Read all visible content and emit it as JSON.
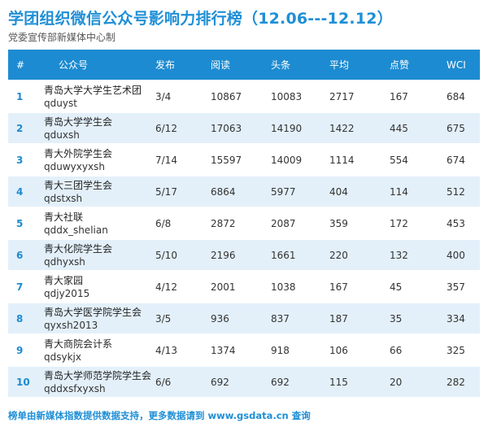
{
  "title": "学团组织微信公众号影响力排行榜（12.06---12.12）",
  "subtitle": "党委宣传部新媒体中心制",
  "header": {
    "rank": "#",
    "name": "公众号",
    "posts": "发布",
    "reads": "阅读",
    "headline": "头条",
    "avg": "平均",
    "likes": "点赞",
    "wci": "WCI"
  },
  "rows": [
    {
      "rank": "1",
      "name": "青岛大学大学生艺术团",
      "id": "qduyst",
      "posts": "3/4",
      "reads": "10867",
      "headline": "10083",
      "avg": "2717",
      "likes": "167",
      "wci": "684"
    },
    {
      "rank": "2",
      "name": "青岛大学学生会",
      "id": "qduxsh",
      "posts": "6/12",
      "reads": "17063",
      "headline": "14190",
      "avg": "1422",
      "likes": "445",
      "wci": "675"
    },
    {
      "rank": "3",
      "name": "青大外院学生会",
      "id": "qduwyxyxsh",
      "posts": "7/14",
      "reads": "15597",
      "headline": "14009",
      "avg": "1114",
      "likes": "554",
      "wci": "674"
    },
    {
      "rank": "4",
      "name": "青大三团学生会",
      "id": "qdstxsh",
      "posts": "5/17",
      "reads": "6864",
      "headline": "5977",
      "avg": "404",
      "likes": "114",
      "wci": "512"
    },
    {
      "rank": "5",
      "name": "青大社联",
      "id": "qddx_shelian",
      "posts": "6/8",
      "reads": "2872",
      "headline": "2087",
      "avg": "359",
      "likes": "172",
      "wci": "453"
    },
    {
      "rank": "6",
      "name": "青大化院学生会",
      "id": "qdhyxsh",
      "posts": "5/10",
      "reads": "2196",
      "headline": "1661",
      "avg": "220",
      "likes": "132",
      "wci": "400"
    },
    {
      "rank": "7",
      "name": "青大家园",
      "id": "qdjy2015",
      "posts": "4/12",
      "reads": "2001",
      "headline": "1038",
      "avg": "167",
      "likes": "45",
      "wci": "357"
    },
    {
      "rank": "8",
      "name": "青岛大学医学院学生会",
      "id": "qyxsh2013",
      "posts": "3/5",
      "reads": "936",
      "headline": "837",
      "avg": "187",
      "likes": "35",
      "wci": "334"
    },
    {
      "rank": "9",
      "name": "青大商院会计系",
      "id": "qdsykjx",
      "posts": "4/13",
      "reads": "1374",
      "headline": "918",
      "avg": "106",
      "likes": "66",
      "wci": "325"
    },
    {
      "rank": "10",
      "name": "青岛大学师范学院学生会",
      "id": "qddxsfxyxsh",
      "posts": "6/6",
      "reads": "692",
      "headline": "692",
      "avg": "115",
      "likes": "20",
      "wci": "282"
    }
  ],
  "footer": "榜单由新媒体指数提供数据支持，更多数据请到 www.gsdata.cn 查询"
}
